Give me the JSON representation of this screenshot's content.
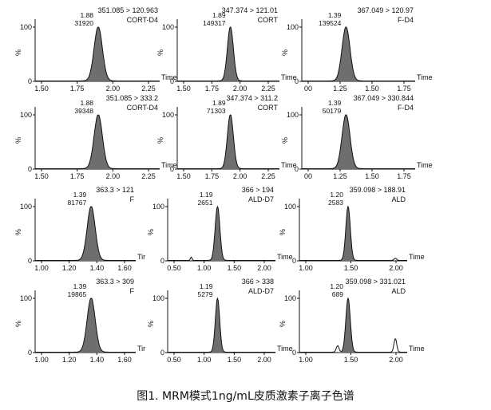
{
  "caption": "图1. MRM模式1ng/mL皮质激素子离子色谱",
  "colors": {
    "peak_fill": "#6e6e6e",
    "line": "#111111",
    "axis": "#111111"
  },
  "chart_data": [
    {
      "type": "area",
      "transition": "351.085 > 120.963",
      "compound": "CORT-D4",
      "rt_label": "1.88",
      "area_label": "31920",
      "xlabel": "Time",
      "ylabel": "%",
      "xlim": [
        1.5,
        2.25
      ],
      "xticks": [
        "1.50",
        "1.75",
        "2.00",
        "2.25"
      ],
      "ylim": [
        0,
        100
      ],
      "yticks": [
        "0",
        "100"
      ],
      "peaks": [
        {
          "rt": 1.88,
          "height": 100,
          "width": 0.025
        }
      ],
      "noise": []
    },
    {
      "type": "area",
      "transition": "347.374 > 121.01",
      "compound": "CORT",
      "rt_label": "1.89",
      "area_label": "149317",
      "xlabel": "Time",
      "ylabel": "%",
      "xlim": [
        1.5,
        2.25
      ],
      "xticks": [
        "1.50",
        "1.75",
        "2.00",
        "2.25"
      ],
      "ylim": [
        0,
        100
      ],
      "yticks": [
        "0",
        "100"
      ],
      "peaks": [
        {
          "rt": 1.89,
          "height": 100,
          "width": 0.022
        }
      ],
      "noise": []
    },
    {
      "type": "area",
      "transition": "367.049 > 120.97",
      "compound": "F-D4",
      "rt_label": "1.39",
      "area_label": "139524",
      "xlabel": "Time",
      "ylabel": "%",
      "xlim": [
        1.0,
        2.0
      ],
      "xticks": [
        "00",
        "1.25",
        "1.50",
        "1.75"
      ],
      "ylim": [
        0,
        100
      ],
      "yticks": [
        "0",
        "100"
      ],
      "peaks": [
        {
          "rt": 1.39,
          "height": 100,
          "width": 0.035
        }
      ],
      "noise": []
    },
    {
      "type": "area",
      "transition": "351.085 > 333.2",
      "compound": "CORT-D4",
      "rt_label": "1.88",
      "area_label": "39348",
      "xlabel": "Time",
      "ylabel": "%",
      "xlim": [
        1.5,
        2.25
      ],
      "xticks": [
        "1.50",
        "1.75",
        "2.00",
        "2.25"
      ],
      "ylim": [
        0,
        100
      ],
      "yticks": [
        "0",
        "100"
      ],
      "peaks": [
        {
          "rt": 1.88,
          "height": 100,
          "width": 0.025
        }
      ],
      "noise": []
    },
    {
      "type": "area",
      "transition": "347.374 > 311.2",
      "compound": "CORT",
      "rt_label": "1.89",
      "area_label": "71303",
      "xlabel": "Time",
      "ylabel": "%",
      "xlim": [
        1.5,
        2.25
      ],
      "xticks": [
        "1.50",
        "1.75",
        "2.00",
        "2.25"
      ],
      "ylim": [
        0,
        100
      ],
      "yticks": [
        "0",
        "100"
      ],
      "peaks": [
        {
          "rt": 1.89,
          "height": 100,
          "width": 0.022
        }
      ],
      "noise": []
    },
    {
      "type": "area",
      "transition": "367.049 > 330.844",
      "compound": "F-D4",
      "rt_label": "1.39",
      "area_label": "50179",
      "xlabel": "Time",
      "ylabel": "%",
      "xlim": [
        1.0,
        2.0
      ],
      "xticks": [
        "00",
        "1.25",
        "1.50",
        "1.75"
      ],
      "ylim": [
        0,
        100
      ],
      "yticks": [
        "0",
        "100"
      ],
      "peaks": [
        {
          "rt": 1.39,
          "height": 100,
          "width": 0.035
        }
      ],
      "noise": []
    },
    {
      "type": "area",
      "transition": "363.3 > 121",
      "compound": "F",
      "rt_label": "1.39",
      "area_label": "81767",
      "xlabel": "Tir",
      "ylabel": "%",
      "xlim": [
        1.0,
        1.7
      ],
      "xticks": [
        "1.00",
        "1.20",
        "1.40",
        "1.60"
      ],
      "ylim": [
        0,
        100
      ],
      "yticks": [
        "0",
        "100"
      ],
      "peaks": [
        {
          "rt": 1.39,
          "height": 100,
          "width": 0.028
        }
      ],
      "noise": []
    },
    {
      "type": "area",
      "transition": "366 > 194",
      "compound": "ALD-D7",
      "rt_label": "1.19",
      "area_label": "2651",
      "xlabel": "Time",
      "ylabel": "%",
      "xlim": [
        0.45,
        2.05
      ],
      "xticks": [
        "0.50",
        "1.00",
        "1.50",
        "2.00"
      ],
      "ylim": [
        0,
        100
      ],
      "yticks": [
        "0",
        "100"
      ],
      "peaks": [
        {
          "rt": 1.19,
          "height": 100,
          "width": 0.035
        }
      ],
      "noise": [
        {
          "rt": 0.8,
          "height": 6,
          "width": 0.012
        }
      ]
    },
    {
      "type": "area",
      "transition": "359.098 > 188.91",
      "compound": "ALD",
      "rt_label": "1.20",
      "area_label": "2583",
      "xlabel": "Time",
      "ylabel": "%",
      "xlim": [
        0.5,
        2.05
      ],
      "xticks": [
        "1.00",
        "1.50",
        "2.00"
      ],
      "ylim": [
        0,
        100
      ],
      "yticks": [
        "0",
        "100"
      ],
      "peaks": [
        {
          "rt": 1.2,
          "height": 100,
          "width": 0.032
        }
      ],
      "noise": [
        {
          "rt": 1.88,
          "height": 4,
          "width": 0.018
        }
      ]
    },
    {
      "type": "area",
      "transition": "363.3 > 309",
      "compound": "F",
      "rt_label": "1.39",
      "area_label": "19865",
      "xlabel": "Tir",
      "ylabel": "%",
      "xlim": [
        1.0,
        1.7
      ],
      "xticks": [
        "1.00",
        "1.20",
        "1.40",
        "1.60"
      ],
      "ylim": [
        0,
        100
      ],
      "yticks": [
        "0",
        "100"
      ],
      "peaks": [
        {
          "rt": 1.39,
          "height": 100,
          "width": 0.028
        }
      ],
      "noise": []
    },
    {
      "type": "area",
      "transition": "366 > 338",
      "compound": "ALD-D7",
      "rt_label": "1.19",
      "area_label": "5279",
      "xlabel": "Time",
      "ylabel": "%",
      "xlim": [
        0.45,
        2.05
      ],
      "xticks": [
        "0.50",
        "1.00",
        "1.50",
        "2.00"
      ],
      "ylim": [
        0,
        100
      ],
      "yticks": [
        "0",
        "100"
      ],
      "peaks": [
        {
          "rt": 1.19,
          "height": 100,
          "width": 0.032
        }
      ],
      "noise": []
    },
    {
      "type": "area",
      "transition": "359.098 > 331.021",
      "compound": "ALD",
      "rt_label": "1.20",
      "area_label": "689",
      "xlabel": "Time",
      "ylabel": "%",
      "xlim": [
        0.5,
        2.05
      ],
      "xticks": [
        "1.00",
        "1.50",
        "2.00"
      ],
      "ylim": [
        0,
        100
      ],
      "yticks": [
        "0",
        "100"
      ],
      "peaks": [
        {
          "rt": 1.2,
          "height": 100,
          "width": 0.032
        }
      ],
      "noise": [
        {
          "rt": 1.05,
          "height": 12,
          "width": 0.02
        },
        {
          "rt": 1.88,
          "height": 25,
          "width": 0.02
        }
      ]
    }
  ]
}
